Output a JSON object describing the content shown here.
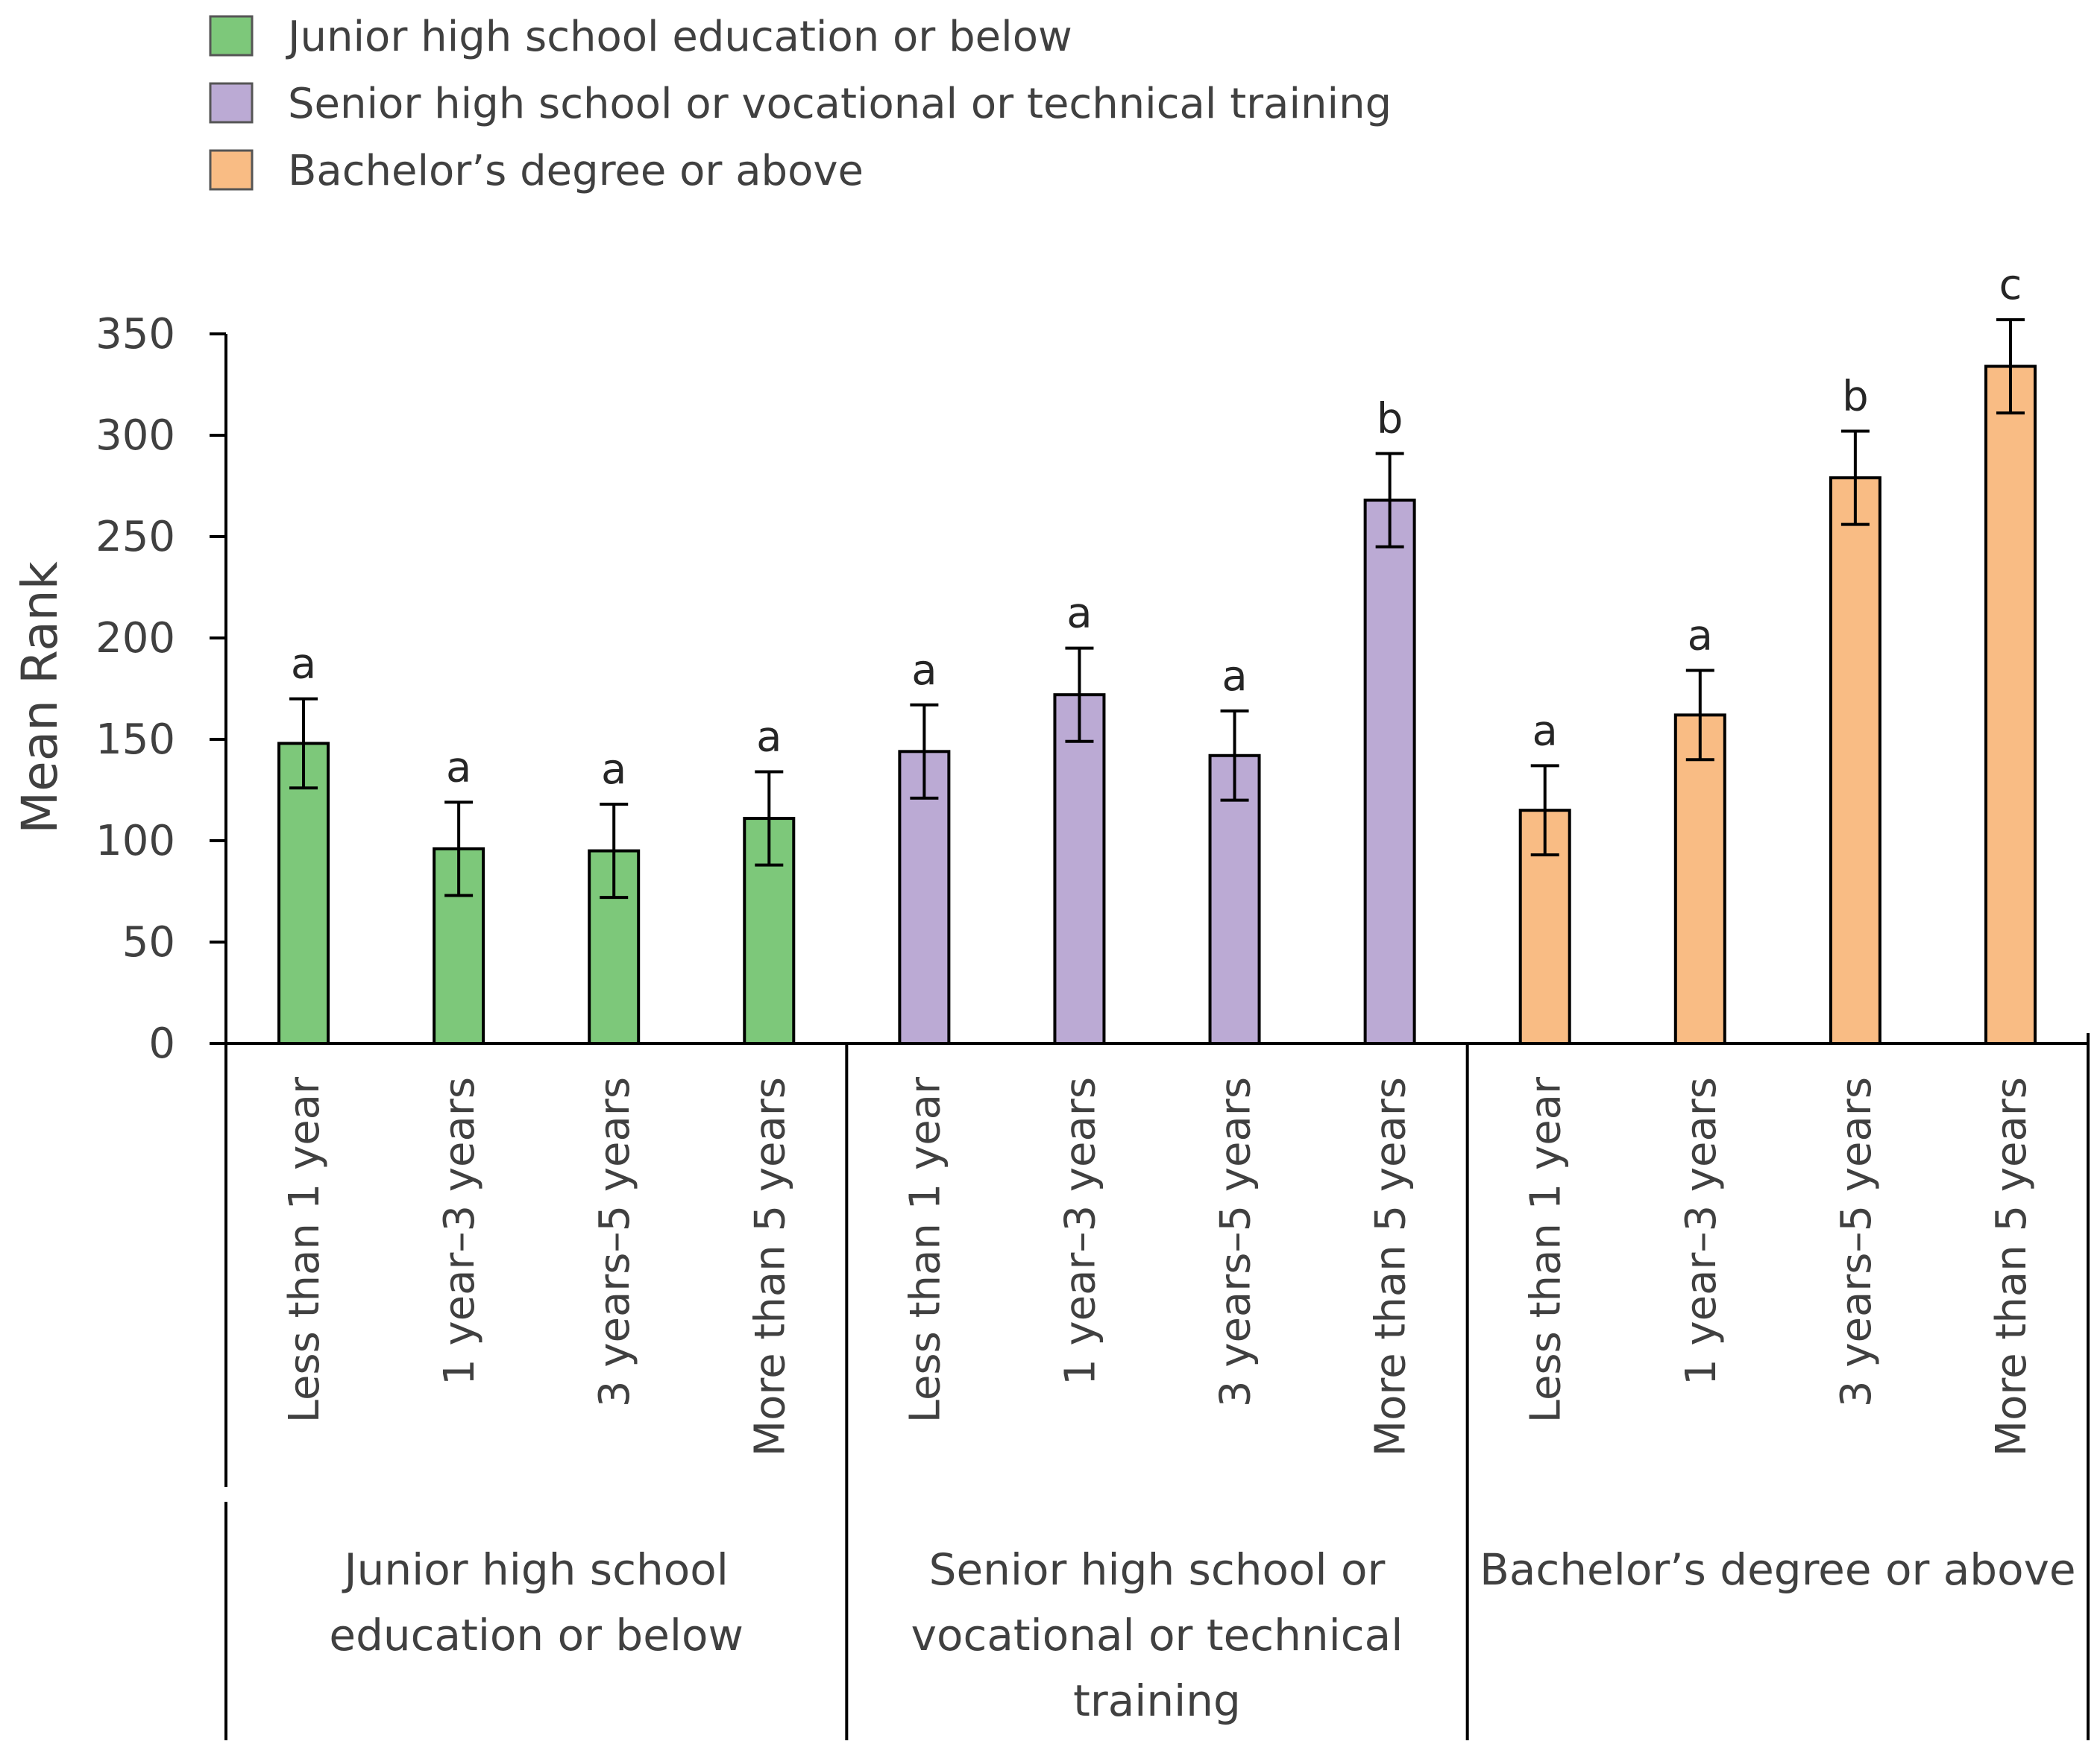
{
  "chart_data": {
    "type": "bar",
    "title": "",
    "xlabel": "",
    "ylabel": "Mean Rank",
    "ylim": [
      0,
      350
    ],
    "yticks": [
      0,
      50,
      100,
      150,
      200,
      250,
      300,
      350
    ],
    "grid": false,
    "legend_position": "top-left",
    "categories": [
      "Less than 1 year",
      "1 year–3 years",
      "3 years–5 years",
      "More than 5 years"
    ],
    "groups": [
      {
        "name": "Junior high school education or below",
        "label_lines": [
          "Junior high school",
          "education or below"
        ],
        "color": "#7dc87a",
        "values": [
          148,
          96,
          95,
          111
        ],
        "errors": [
          22,
          23,
          23,
          23
        ],
        "letters": [
          "a",
          "a",
          "a",
          "a"
        ]
      },
      {
        "name": "Senior high school or vocational or technical training",
        "label_lines": [
          "Senior high school or",
          "vocational or technical",
          "training"
        ],
        "color": "#bbaad4",
        "values": [
          144,
          172,
          142,
          268
        ],
        "errors": [
          23,
          23,
          22,
          23
        ],
        "letters": [
          "a",
          "a",
          "a",
          "b"
        ]
      },
      {
        "name": "Bachelor’s degree or above",
        "label_lines": [
          "Bachelor’s degree or above"
        ],
        "color": "#f9bc84",
        "values": [
          115,
          162,
          279,
          334
        ],
        "errors": [
          22,
          22,
          23,
          23
        ],
        "letters": [
          "a",
          "a",
          "b",
          "c"
        ]
      }
    ]
  }
}
